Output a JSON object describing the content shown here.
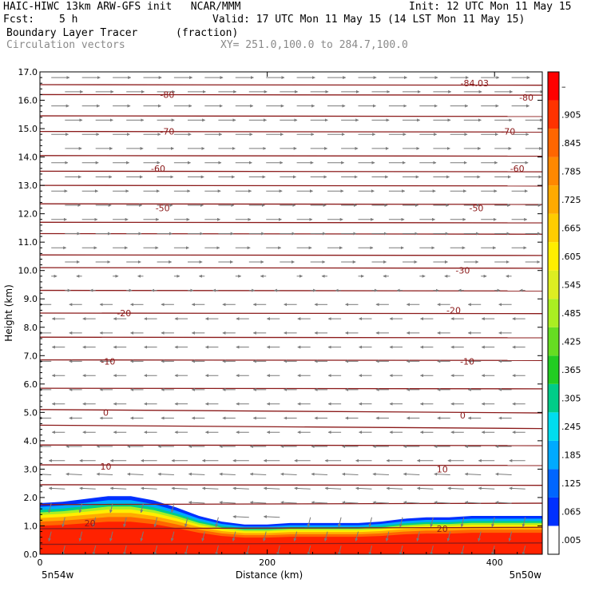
{
  "header": {
    "line1_left": "HAIC-HIWC 13km ARW-GFS init   NCAR/MMM",
    "line1_right": "Init: 12 UTC Mon 11 May 15",
    "fcst_label": "Fcst:",
    "fcst_value": "5 h",
    "valid": "Valid: 17 UTC Mon 11 May 15 (14 LST Mon 11 May 15)",
    "field_name": "Boundary Layer Tracer",
    "field_units": "(fraction)",
    "vector_name": "Circulation vectors",
    "xsection": "XY= 251.0,100.0 to 284.7,100.0"
  },
  "chart_data": {
    "type": "heatmap",
    "xlabel": "Distance (km)",
    "ylabel": "Height (km)",
    "xlim": [
      0,
      442
    ],
    "ylim": [
      0,
      17
    ],
    "x_ticks": [
      0,
      200,
      400
    ],
    "y_ticks": [
      "0.0",
      "1.0",
      "2.0",
      "3.0",
      "4.0",
      "5.0",
      "6.0",
      "7.0",
      "8.0",
      "9.0",
      "10.0",
      "11.0",
      "12.0",
      "13.0",
      "14.0",
      "15.0",
      "16.0",
      "17.0"
    ],
    "x_endpoints": {
      "left": "5n54w",
      "right": "5n50w"
    },
    "colorbar": {
      "labels": [
        ".005",
        ".065",
        ".125",
        ".185",
        ".245",
        ".305",
        ".365",
        ".425",
        ".485",
        ".545",
        ".605",
        ".665",
        ".725",
        ".785",
        ".845",
        ".905",
        "–"
      ],
      "colors": [
        "#ffffff",
        "#0030ff",
        "#0066ff",
        "#00aaff",
        "#00ddee",
        "#00cc88",
        "#22cc22",
        "#66dd22",
        "#aaee22",
        "#ddee22",
        "#ffee00",
        "#ffcc00",
        "#ffaa00",
        "#ff8800",
        "#ff6600",
        "#ff3300",
        "#ff0000"
      ]
    },
    "boundary_layer_top_km": {
      "x": [
        0,
        20,
        40,
        60,
        80,
        100,
        120,
        140,
        160,
        180,
        200,
        220,
        240,
        260,
        280,
        300,
        320,
        340,
        360,
        380,
        400,
        420,
        442
      ],
      "y": [
        1.8,
        1.85,
        1.95,
        2.05,
        2.05,
        1.9,
        1.65,
        1.35,
        1.15,
        1.05,
        1.05,
        1.1,
        1.1,
        1.1,
        1.1,
        1.15,
        1.25,
        1.3,
        1.3,
        1.35,
        1.35,
        1.35,
        1.35
      ]
    },
    "temperature_contours": {
      "labels": [
        {
          "text": "-80",
          "x": 112,
          "y": 16.2
        },
        {
          "text": "-80",
          "x": 428,
          "y": 16.1
        },
        {
          "text": "-70",
          "x": 112,
          "y": 14.9
        },
        {
          "text": "-70",
          "x": 412,
          "y": 14.9
        },
        {
          "text": "-60",
          "x": 104,
          "y": 13.6
        },
        {
          "text": "-60",
          "x": 420,
          "y": 13.6
        },
        {
          "text": "-50",
          "x": 108,
          "y": 12.2
        },
        {
          "text": "-50",
          "x": 384,
          "y": 12.2
        },
        {
          "text": "-30",
          "x": 372,
          "y": 10.0
        },
        {
          "text": "-20",
          "x": 74,
          "y": 8.5
        },
        {
          "text": "-20",
          "x": 364,
          "y": 8.6
        },
        {
          "text": "-10",
          "x": 60,
          "y": 6.8
        },
        {
          "text": "-10",
          "x": 376,
          "y": 6.8
        },
        {
          "text": "0",
          "x": 58,
          "y": 5.0
        },
        {
          "text": "0",
          "x": 372,
          "y": 4.9
        },
        {
          "text": "10",
          "x": 58,
          "y": 3.1
        },
        {
          "text": "10",
          "x": 354,
          "y": 3.0
        },
        {
          "text": "20",
          "x": 44,
          "y": 1.1
        },
        {
          "text": "20",
          "x": 354,
          "y": 0.9
        }
      ],
      "min_label": {
        "text": "-84.03",
        "x": 370,
        "y": 16.6
      }
    }
  }
}
